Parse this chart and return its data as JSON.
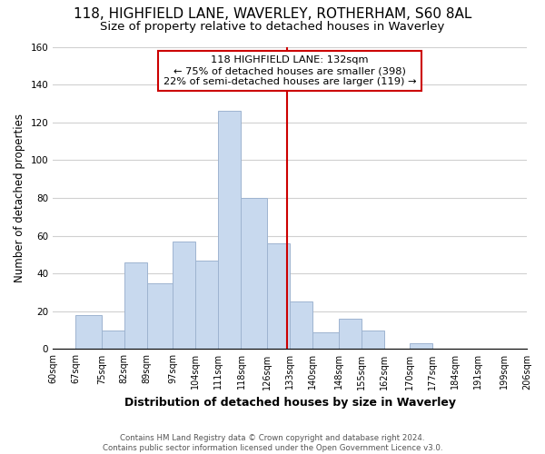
{
  "title": "118, HIGHFIELD LANE, WAVERLEY, ROTHERHAM, S60 8AL",
  "subtitle": "Size of property relative to detached houses in Waverley",
  "xlabel": "Distribution of detached houses by size in Waverley",
  "ylabel": "Number of detached properties",
  "footer_line1": "Contains HM Land Registry data © Crown copyright and database right 2024.",
  "footer_line2": "Contains public sector information licensed under the Open Government Licence v3.0.",
  "bin_labels": [
    "60sqm",
    "67sqm",
    "75sqm",
    "82sqm",
    "89sqm",
    "97sqm",
    "104sqm",
    "111sqm",
    "118sqm",
    "126sqm",
    "133sqm",
    "140sqm",
    "148sqm",
    "155sqm",
    "162sqm",
    "170sqm",
    "177sqm",
    "184sqm",
    "191sqm",
    "199sqm",
    "206sqm"
  ],
  "bar_heights": [
    0,
    18,
    10,
    46,
    35,
    57,
    47,
    126,
    80,
    56,
    25,
    9,
    16,
    10,
    0,
    3,
    0,
    0,
    0,
    0
  ],
  "bar_edges": [
    60,
    67,
    75,
    82,
    89,
    97,
    104,
    111,
    118,
    126,
    133,
    140,
    148,
    155,
    162,
    170,
    177,
    184,
    191,
    199,
    206
  ],
  "bar_color": "#c8d9ee",
  "bar_edgecolor": "#9eb4d0",
  "vline_x": 132,
  "vline_color": "#cc0000",
  "annotation_title": "118 HIGHFIELD LANE: 132sqm",
  "annotation_line2": "← 75% of detached houses are smaller (398)",
  "annotation_line3": "22% of semi-detached houses are larger (119) →",
  "annotation_box_edgecolor": "#cc0000",
  "annotation_box_facecolor": "#ffffff",
  "ylim": [
    0,
    160
  ],
  "yticks": [
    0,
    20,
    40,
    60,
    80,
    100,
    120,
    140,
    160
  ],
  "grid_color": "#d0d0d0",
  "bg_color": "#ffffff",
  "title_fontsize": 11,
  "subtitle_fontsize": 9.5,
  "xlabel_fontsize": 9,
  "ylabel_fontsize": 8.5
}
